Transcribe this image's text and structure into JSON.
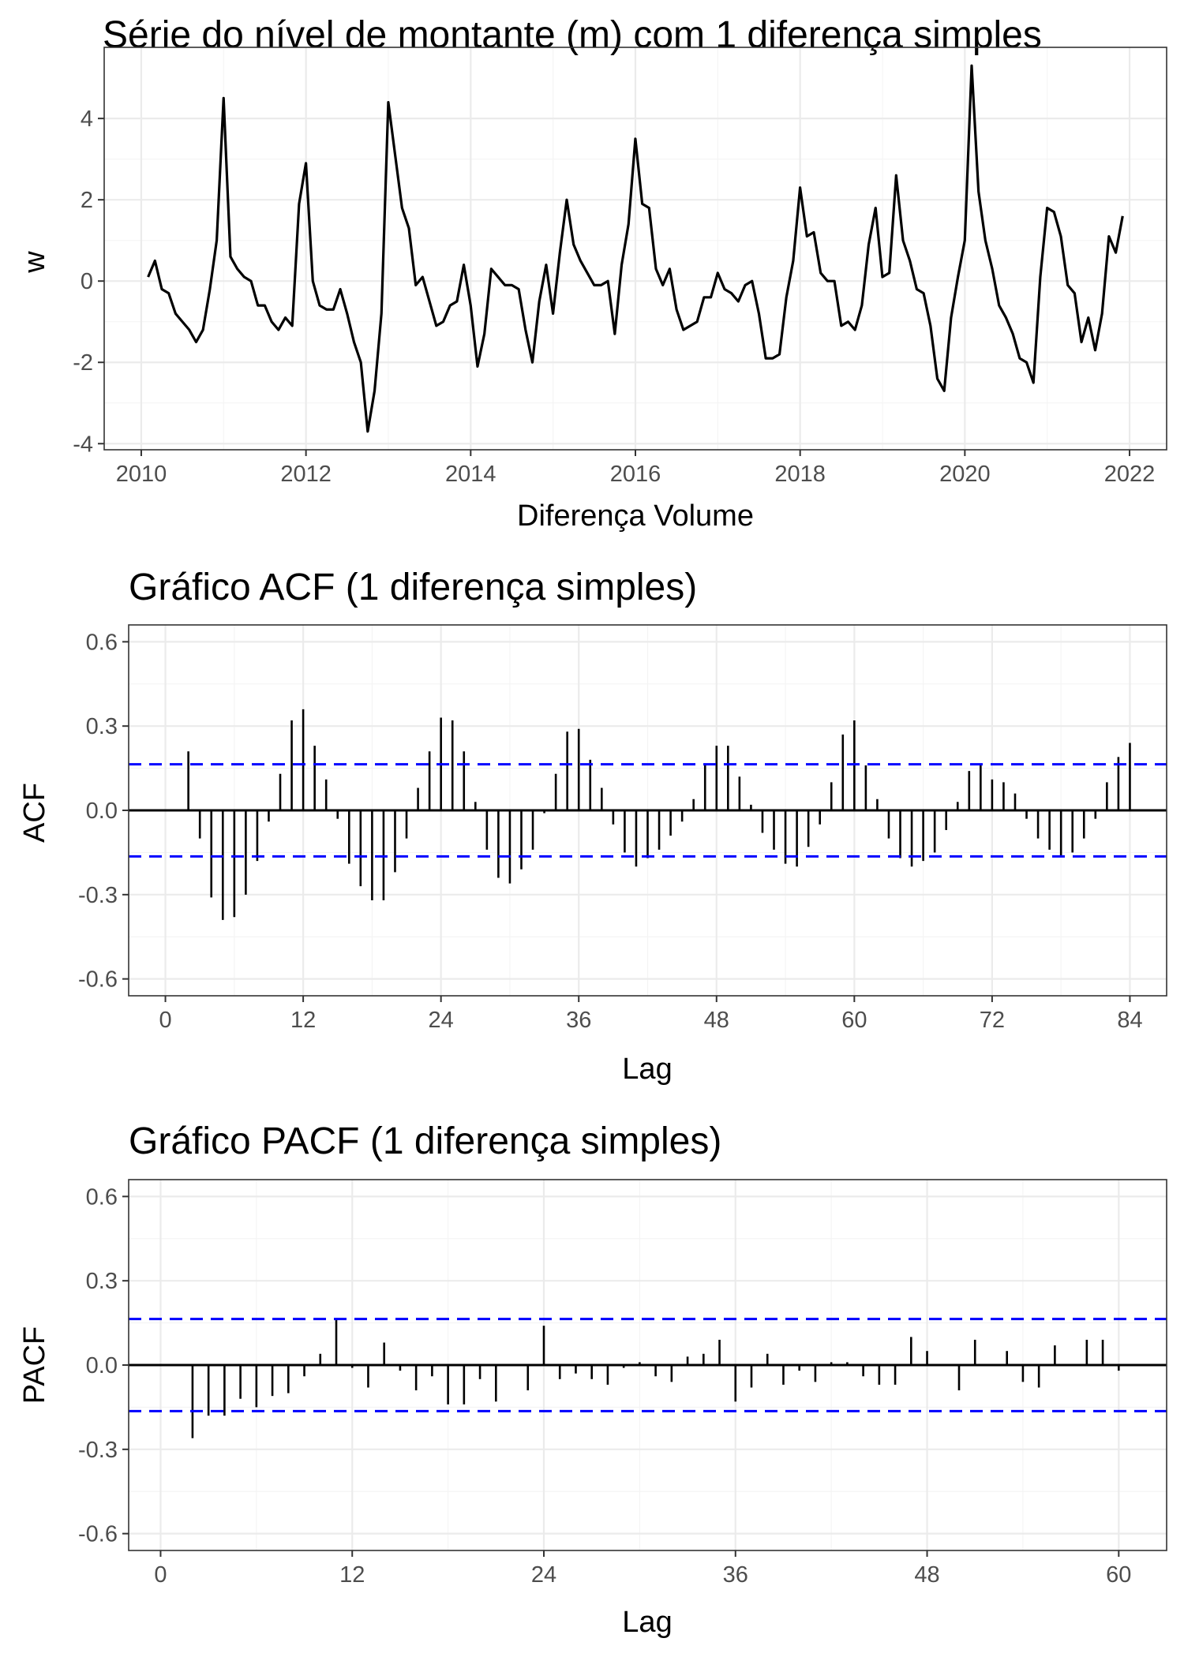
{
  "chart_data": [
    {
      "id": "series",
      "type": "line",
      "title": "Série do nível de montante (m) com 1 diferença simples",
      "xlabel": "Diferença Volume",
      "ylabel": "w",
      "xticks": [
        2010,
        2012,
        2014,
        2016,
        2018,
        2020,
        2022
      ],
      "yticks": [
        -4,
        -2,
        0,
        2,
        4
      ],
      "xlim": [
        2009.55,
        2022.45
      ],
      "ylim": [
        -4.15,
        5.75
      ],
      "grid": true,
      "series": [
        {
          "x_start": 2010.083,
          "x_step": 0.08333,
          "color": "#000000",
          "values": [
            0.1,
            0.5,
            -0.2,
            -0.3,
            -0.8,
            -1.0,
            -1.2,
            -1.5,
            -1.2,
            -0.2,
            1.0,
            4.5,
            0.6,
            0.3,
            0.1,
            0.0,
            -0.6,
            -0.6,
            -1.0,
            -1.2,
            -0.9,
            -1.1,
            1.9,
            2.9,
            0.0,
            -0.6,
            -0.7,
            -0.7,
            -0.2,
            -0.8,
            -1.5,
            -2.0,
            -3.7,
            -2.7,
            -0.8,
            4.4,
            3.1,
            1.8,
            1.3,
            -0.1,
            0.1,
            -0.5,
            -1.1,
            -1.0,
            -0.6,
            -0.5,
            0.4,
            -0.6,
            -2.1,
            -1.3,
            0.3,
            0.1,
            -0.1,
            -0.1,
            -0.2,
            -1.2,
            -2.0,
            -0.5,
            0.4,
            -0.8,
            0.7,
            2.0,
            0.9,
            0.5,
            0.2,
            -0.1,
            -0.1,
            0.0,
            -1.3,
            0.4,
            1.4,
            3.5,
            1.9,
            1.8,
            0.3,
            -0.1,
            0.3,
            -0.7,
            -1.2,
            -1.1,
            -1.0,
            -0.4,
            -0.4,
            0.2,
            -0.2,
            -0.3,
            -0.5,
            -0.1,
            0.0,
            -0.8,
            -1.9,
            -1.9,
            -1.8,
            -0.4,
            0.5,
            2.3,
            1.1,
            1.2,
            0.2,
            0.0,
            0.0,
            -1.1,
            -1.0,
            -1.2,
            -0.6,
            0.9,
            1.8,
            0.1,
            0.2,
            2.6,
            1.0,
            0.5,
            -0.2,
            -0.3,
            -1.1,
            -2.4,
            -2.7,
            -0.9,
            0.1,
            1.0,
            5.3,
            2.2,
            1.0,
            0.3,
            -0.6,
            -0.9,
            -1.3,
            -1.9,
            -2.0,
            -2.5,
            0.1,
            1.8,
            1.7,
            1.1,
            -0.1,
            -0.3,
            -1.5,
            -0.9,
            -1.7,
            -0.8,
            1.1,
            0.7,
            1.6
          ]
        }
      ]
    },
    {
      "id": "acf",
      "type": "bar",
      "title": "Gráfico ACF (1 diferença simples)",
      "xlabel": "Lag",
      "ylabel": "ACF",
      "xticks": [
        0,
        12,
        24,
        36,
        48,
        60,
        72,
        84
      ],
      "yticks": [
        -0.6,
        -0.3,
        0.0,
        0.3,
        0.6
      ],
      "ytick_labels": [
        "-0.6",
        "-0.3",
        "0.0",
        "0.3",
        "0.6"
      ],
      "xlim": [
        -3.2,
        87.2
      ],
      "ylim": [
        -0.66,
        0.66
      ],
      "grid": true,
      "confidence_bound": 0.164,
      "confidence_color": "#0000ff",
      "lags_start": 2,
      "values": [
        0.21,
        -0.1,
        -0.31,
        -0.39,
        -0.38,
        -0.3,
        -0.18,
        -0.04,
        0.13,
        0.32,
        0.36,
        0.23,
        0.11,
        -0.03,
        -0.19,
        -0.27,
        -0.32,
        -0.32,
        -0.22,
        -0.1,
        0.08,
        0.21,
        0.33,
        0.32,
        0.21,
        0.03,
        -0.14,
        -0.24,
        -0.26,
        -0.21,
        -0.14,
        -0.01,
        0.13,
        0.28,
        0.29,
        0.18,
        0.08,
        -0.05,
        -0.15,
        -0.2,
        -0.17,
        -0.14,
        -0.09,
        -0.04,
        0.04,
        0.16,
        0.23,
        0.23,
        0.12,
        0.02,
        -0.08,
        -0.14,
        -0.19,
        -0.2,
        -0.13,
        -0.05,
        0.1,
        0.27,
        0.32,
        0.16,
        0.04,
        -0.1,
        -0.17,
        -0.2,
        -0.18,
        -0.15,
        -0.07,
        0.03,
        0.14,
        0.16,
        0.11,
        0.1,
        0.06,
        -0.03,
        -0.1,
        -0.14,
        -0.16,
        -0.15,
        -0.1,
        -0.03,
        0.1,
        0.19,
        0.24
      ]
    },
    {
      "id": "pacf",
      "type": "bar",
      "title": "Gráfico PACF (1 diferença simples)",
      "xlabel": "Lag",
      "ylabel": "PACF",
      "xticks": [
        0,
        12,
        24,
        36,
        48,
        60
      ],
      "yticks": [
        -0.6,
        -0.3,
        0.0,
        0.3,
        0.6
      ],
      "ytick_labels": [
        "-0.6",
        "-0.3",
        "0.0",
        "0.3",
        "0.6"
      ],
      "xlim": [
        -2.0,
        63.0
      ],
      "ylim": [
        -0.66,
        0.66
      ],
      "grid": true,
      "confidence_bound": 0.164,
      "confidence_color": "#0000ff",
      "lags_start": 2,
      "values": [
        -0.26,
        -0.18,
        -0.18,
        -0.12,
        -0.15,
        -0.11,
        -0.1,
        -0.04,
        0.04,
        0.16,
        -0.01,
        -0.08,
        0.08,
        -0.02,
        -0.09,
        -0.04,
        -0.14,
        -0.14,
        -0.05,
        -0.13,
        0.0,
        -0.09,
        0.14,
        -0.05,
        -0.03,
        -0.05,
        -0.07,
        -0.01,
        0.01,
        -0.04,
        -0.06,
        0.03,
        0.04,
        0.09,
        -0.13,
        -0.08,
        0.04,
        -0.07,
        -0.02,
        -0.06,
        0.01,
        0.01,
        -0.04,
        -0.07,
        -0.07,
        0.1,
        0.05,
        0.0,
        -0.09,
        0.09,
        0.0,
        0.05,
        -0.06,
        -0.08,
        0.07,
        0.0,
        0.09,
        0.09,
        -0.02
      ]
    }
  ]
}
